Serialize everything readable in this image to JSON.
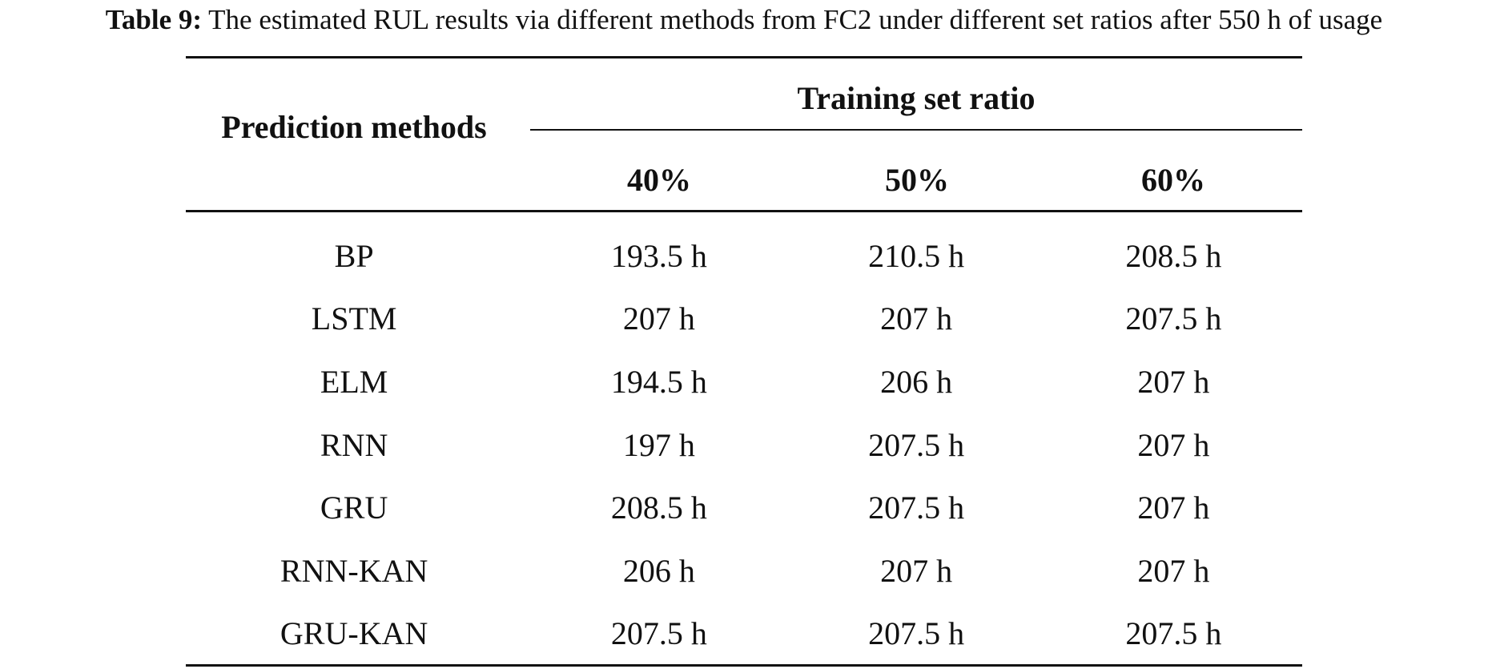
{
  "caption": {
    "label": "Table 9:",
    "text": "The estimated RUL results via different methods from FC2 under different set ratios after 550 h of usage"
  },
  "header": {
    "methods": "Prediction methods",
    "group": "Training set ratio",
    "columns": [
      "40%",
      "50%",
      "60%"
    ]
  },
  "rows": [
    {
      "method": "BP",
      "values": [
        "193.5 h",
        "210.5 h",
        "208.5 h"
      ]
    },
    {
      "method": "LSTM",
      "values": [
        "207 h",
        "207 h",
        "207.5 h"
      ]
    },
    {
      "method": "ELM",
      "values": [
        "194.5 h",
        "206 h",
        "207 h"
      ]
    },
    {
      "method": "RNN",
      "values": [
        "197 h",
        "207.5 h",
        "207 h"
      ]
    },
    {
      "method": "GRU",
      "values": [
        "208.5 h",
        "207.5 h",
        "207 h"
      ]
    },
    {
      "method": "RNN-KAN",
      "values": [
        "206 h",
        "207 h",
        "207 h"
      ]
    },
    {
      "method": "GRU-KAN",
      "values": [
        "207.5 h",
        "207.5 h",
        "207.5 h"
      ]
    }
  ]
}
